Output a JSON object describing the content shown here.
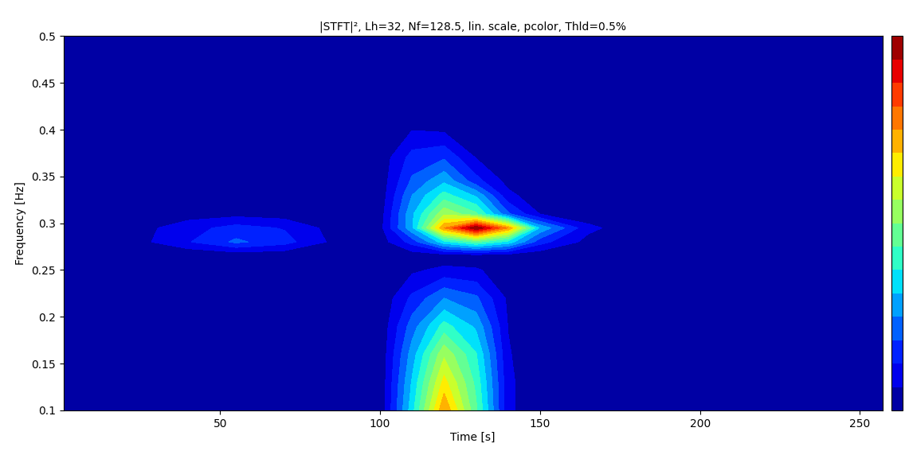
{
  "chart_data": {
    "type": "contour",
    "title": "|STFT|², Lh=32, Nf=128.5, lin. scale, pcolor, Thld=0.5%",
    "x_label": "Time [s]",
    "y_label": "Frequency [Hz]",
    "color": "jet",
    "x": [
      1,
      20,
      40,
      55,
      70,
      85,
      100,
      110,
      120,
      130,
      140,
      150,
      165,
      180,
      210,
      240,
      257
    ],
    "y": [
      0.1,
      0.13,
      0.16,
      0.19,
      0.22,
      0.25,
      0.265,
      0.28,
      0.295,
      0.31,
      0.33,
      0.345,
      0.37,
      0.4,
      0.43,
      0.46,
      0.5
    ],
    "values": [
      [
        0,
        0,
        0,
        0,
        0,
        0,
        0.01,
        0.35,
        0.75,
        0.45,
        0.08,
        0,
        0,
        0,
        0,
        0,
        0
      ],
      [
        0,
        0,
        0,
        0,
        0,
        0,
        0.01,
        0.32,
        0.65,
        0.42,
        0.08,
        0,
        0,
        0,
        0,
        0,
        0
      ],
      [
        0,
        0,
        0,
        0,
        0,
        0,
        0.01,
        0.28,
        0.55,
        0.38,
        0.07,
        0,
        0,
        0,
        0,
        0,
        0
      ],
      [
        0,
        0,
        0,
        0,
        0,
        0,
        0.01,
        0.22,
        0.4,
        0.3,
        0.06,
        0,
        0,
        0,
        0,
        0,
        0
      ],
      [
        0,
        0,
        0,
        0,
        0,
        0,
        0.01,
        0.14,
        0.25,
        0.2,
        0.05,
        0.01,
        0,
        0,
        0,
        0,
        0
      ],
      [
        0,
        0,
        0,
        0,
        0,
        0,
        0.01,
        0.05,
        0.08,
        0.07,
        0.03,
        0.01,
        0,
        0,
        0,
        0,
        0.04
      ],
      [
        0,
        0,
        0,
        0.01,
        0.01,
        0.01,
        0.01,
        0.02,
        0.02,
        0.02,
        0.02,
        0.01,
        0,
        0,
        0,
        0,
        0.05
      ],
      [
        0,
        0.02,
        0.12,
        0.2,
        0.15,
        0.05,
        0.03,
        0.15,
        0.35,
        0.45,
        0.35,
        0.15,
        0.04,
        0.01,
        0,
        0.01,
        0.05
      ],
      [
        0,
        0.02,
        0.1,
        0.15,
        0.12,
        0.04,
        0.04,
        0.3,
        0.75,
        1.0,
        0.75,
        0.3,
        0.08,
        0.02,
        0,
        0.01,
        0.05
      ],
      [
        0,
        0.01,
        0.03,
        0.04,
        0.03,
        0.01,
        0.03,
        0.3,
        0.55,
        0.45,
        0.2,
        0.06,
        0.02,
        0,
        0,
        0.01,
        0.05
      ],
      [
        0,
        0,
        0.02,
        0.02,
        0.01,
        0,
        0.02,
        0.25,
        0.4,
        0.3,
        0.08,
        0.02,
        0,
        0,
        0,
        0,
        0.03
      ],
      [
        0,
        0,
        0.05,
        0.06,
        0.04,
        0,
        0.02,
        0.2,
        0.3,
        0.15,
        0.04,
        0.01,
        0,
        0,
        0,
        0,
        0
      ],
      [
        0,
        0,
        0.01,
        0.01,
        0,
        0,
        0.02,
        0.15,
        0.18,
        0.06,
        0.02,
        0,
        0,
        0,
        0,
        0,
        0
      ],
      [
        0,
        0,
        0,
        0,
        0,
        0,
        0.02,
        0.06,
        0.05,
        0.03,
        0.01,
        0,
        0,
        0,
        0,
        0,
        0
      ],
      [
        0,
        0,
        0,
        0,
        0,
        0,
        0.02,
        0.05,
        0.04,
        0.02,
        0,
        0,
        0,
        0,
        0,
        0,
        0
      ],
      [
        0,
        0,
        0,
        0,
        0,
        0,
        0.02,
        0.04,
        0.03,
        0.02,
        0,
        0,
        0,
        0,
        0,
        0,
        0
      ],
      [
        0,
        0,
        0,
        0,
        0,
        0,
        0.01,
        0.03,
        0.02,
        0.01,
        0,
        0,
        0,
        0,
        0,
        0,
        0
      ]
    ],
    "colorbar_range": [
      0,
      1
    ],
    "xlim": [
      1,
      257
    ],
    "ylim": [
      0.1,
      0.5
    ],
    "xticks": [
      50,
      100,
      150,
      200,
      250
    ],
    "yticks": [
      0.1,
      0.15,
      0.2,
      0.25,
      0.3,
      0.35,
      0.4,
      0.45,
      0.5
    ]
  }
}
